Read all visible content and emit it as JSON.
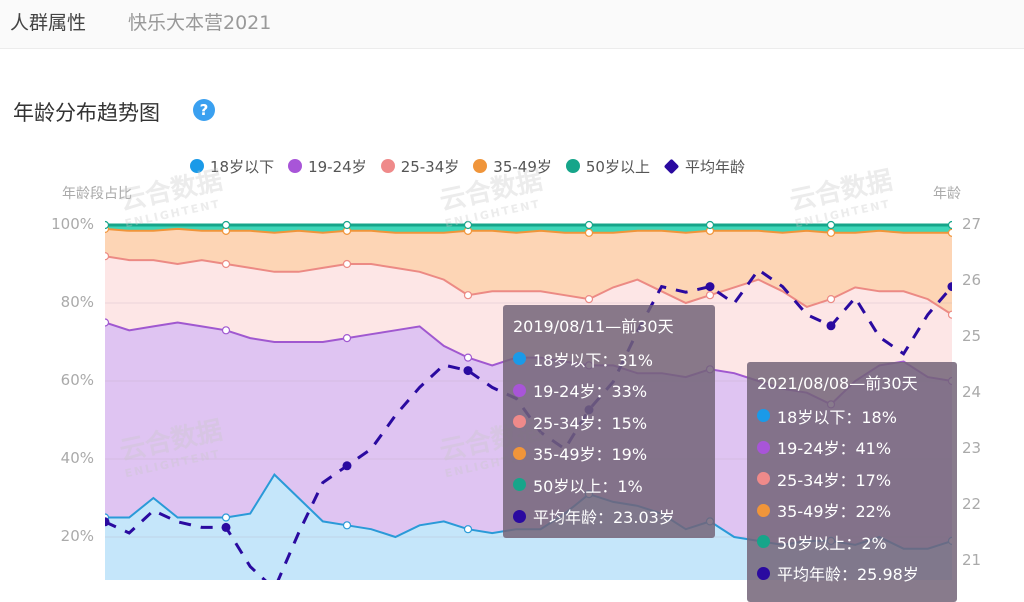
{
  "header": {
    "crumb_section": "人群属性",
    "crumb_account": "快乐大本营2021"
  },
  "section": {
    "title": "年龄分布趋势图",
    "help_icon": "question-circle-icon"
  },
  "legend": [
    {
      "label": "18岁以下",
      "color": "#1a9ae8",
      "shape": "circle"
    },
    {
      "label": "19-24岁",
      "color": "#a855d8",
      "shape": "circle"
    },
    {
      "label": "25-34岁",
      "color": "#ef8a8a",
      "shape": "circle"
    },
    {
      "label": "35-49岁",
      "color": "#f0953a",
      "shape": "circle"
    },
    {
      "label": "50岁以上",
      "color": "#16a58a",
      "shape": "circle"
    },
    {
      "label": "平均年龄",
      "color": "#2a0aa0",
      "shape": "diamond"
    }
  ],
  "axes": {
    "left_title": "年龄段占比",
    "right_title": "年龄",
    "left_ticks": [
      "100%",
      "80%",
      "60%",
      "40%",
      "20%"
    ],
    "right_ticks": [
      "27",
      "26",
      "25",
      "24",
      "23",
      "22",
      "21"
    ]
  },
  "tooltips": [
    {
      "title": "2019/08/11—前30天",
      "rows": [
        {
          "label": "18岁以下：31%",
          "color": "#1a9ae8"
        },
        {
          "label": "19-24岁：33%",
          "color": "#a855d8"
        },
        {
          "label": "25-34岁：15%",
          "color": "#ef8a8a"
        },
        {
          "label": "35-49岁：19%",
          "color": "#f0953a"
        },
        {
          "label": "50岁以上：1%",
          "color": "#16a58a"
        },
        {
          "label": "平均年龄：23.03岁",
          "color": "#2a0aa0"
        }
      ]
    },
    {
      "title": "2021/08/08—前30天",
      "rows": [
        {
          "label": "18岁以下：18%",
          "color": "#1a9ae8"
        },
        {
          "label": "19-24岁：41%",
          "color": "#a855d8"
        },
        {
          "label": "25-34岁：17%",
          "color": "#ef8a8a"
        },
        {
          "label": "35-49岁：22%",
          "color": "#f0953a"
        },
        {
          "label": "50岁以上：2%",
          "color": "#16a58a"
        },
        {
          "label": "平均年龄：25.98岁",
          "color": "#2a0aa0"
        }
      ]
    }
  ],
  "watermark": {
    "text": "云合数据",
    "sub": "ENLIGHTENT"
  },
  "chart_data": {
    "type": "area",
    "stacked": true,
    "title": "年龄分布趋势图",
    "ylabel": "年龄段占比",
    "y2label": "年龄",
    "ylim": [
      0,
      100
    ],
    "y2lim": [
      20,
      27
    ],
    "left_ticks": [
      "20%",
      "40%",
      "60%",
      "80%",
      "100%"
    ],
    "right_ticks": [
      21,
      22,
      23,
      24,
      25,
      26,
      27
    ],
    "legend_position": "top",
    "grid": true,
    "x_points": 36,
    "series": [
      {
        "name": "18岁以下",
        "type": "stacked-area",
        "color": "#1a9ae8",
        "cumulative_values": [
          25,
          25,
          30,
          25,
          25,
          25,
          26,
          36,
          30,
          24,
          23,
          22,
          20,
          23,
          24,
          22,
          21,
          22,
          22,
          26,
          31,
          29,
          28,
          26,
          22,
          24,
          20,
          19,
          18,
          19,
          19,
          18,
          20,
          17,
          17,
          19
        ]
      },
      {
        "name": "19-24岁",
        "type": "stacked-area",
        "color": "#a855d8",
        "cumulative_values": [
          75,
          73,
          74,
          75,
          74,
          73,
          71,
          70,
          70,
          70,
          71,
          72,
          73,
          74,
          69,
          66,
          64,
          66,
          66,
          65,
          64,
          64,
          62,
          62,
          61,
          63,
          62,
          60,
          58,
          57,
          54,
          60,
          64,
          65,
          61,
          60
        ]
      },
      {
        "name": "25-34岁",
        "type": "stacked-area",
        "color": "#ef8a8a",
        "cumulative_values": [
          92,
          91,
          91,
          90,
          91,
          90,
          89,
          88,
          88,
          89,
          90,
          90,
          89,
          88,
          86,
          82,
          83,
          83,
          83,
          82,
          81,
          84,
          86,
          83,
          80,
          82,
          84,
          86,
          83,
          79,
          81,
          84,
          83,
          83,
          81,
          77
        ]
      },
      {
        "name": "35-49岁",
        "type": "stacked-area",
        "color": "#f0953a",
        "cumulative_values": [
          99,
          98.5,
          98.5,
          99,
          98.5,
          98.5,
          98.5,
          98,
          98.5,
          98,
          98.5,
          98.5,
          98,
          98,
          98,
          98.5,
          98.5,
          98,
          98.5,
          98,
          98,
          98,
          98.5,
          98.5,
          98,
          98.5,
          98.5,
          98.5,
          98,
          98.5,
          98,
          98,
          98.5,
          98,
          98,
          98
        ]
      },
      {
        "name": "50岁以上",
        "type": "stacked-area",
        "color": "#16a58a",
        "cumulative_values": [
          100,
          100,
          100,
          100,
          100,
          100,
          100,
          100,
          100,
          100,
          100,
          100,
          100,
          100,
          100,
          100,
          100,
          100,
          100,
          100,
          100,
          100,
          100,
          100,
          100,
          100,
          100,
          100,
          100,
          100,
          100,
          100,
          100,
          100,
          100,
          100
        ]
      },
      {
        "name": "平均年龄",
        "type": "dashed-line",
        "axis": "right",
        "color": "#2a0aa0",
        "values": [
          21.7,
          21.5,
          21.9,
          21.7,
          21.6,
          21.6,
          20.9,
          20.5,
          21.5,
          22.4,
          22.7,
          23.0,
          23.6,
          24.1,
          24.5,
          24.4,
          24.1,
          23.9,
          23.3,
          23.0,
          23.7,
          24.2,
          25.1,
          25.9,
          25.8,
          25.9,
          25.6,
          26.2,
          25.9,
          25.4,
          25.2,
          25.7,
          25.0,
          24.7,
          25.4,
          25.9
        ]
      }
    ],
    "annotations": [
      {
        "date": "2019/08/11—前30天",
        "18岁以下": 31,
        "19-24岁": 33,
        "25-34岁": 15,
        "35-49岁": 19,
        "50岁以上": 1,
        "平均年龄": 23.03
      },
      {
        "date": "2021/08/08—前30天",
        "18岁以下": 18,
        "19-24岁": 41,
        "25-34岁": 17,
        "35-49岁": 22,
        "50岁以上": 2,
        "平均年龄": 25.98
      }
    ]
  }
}
